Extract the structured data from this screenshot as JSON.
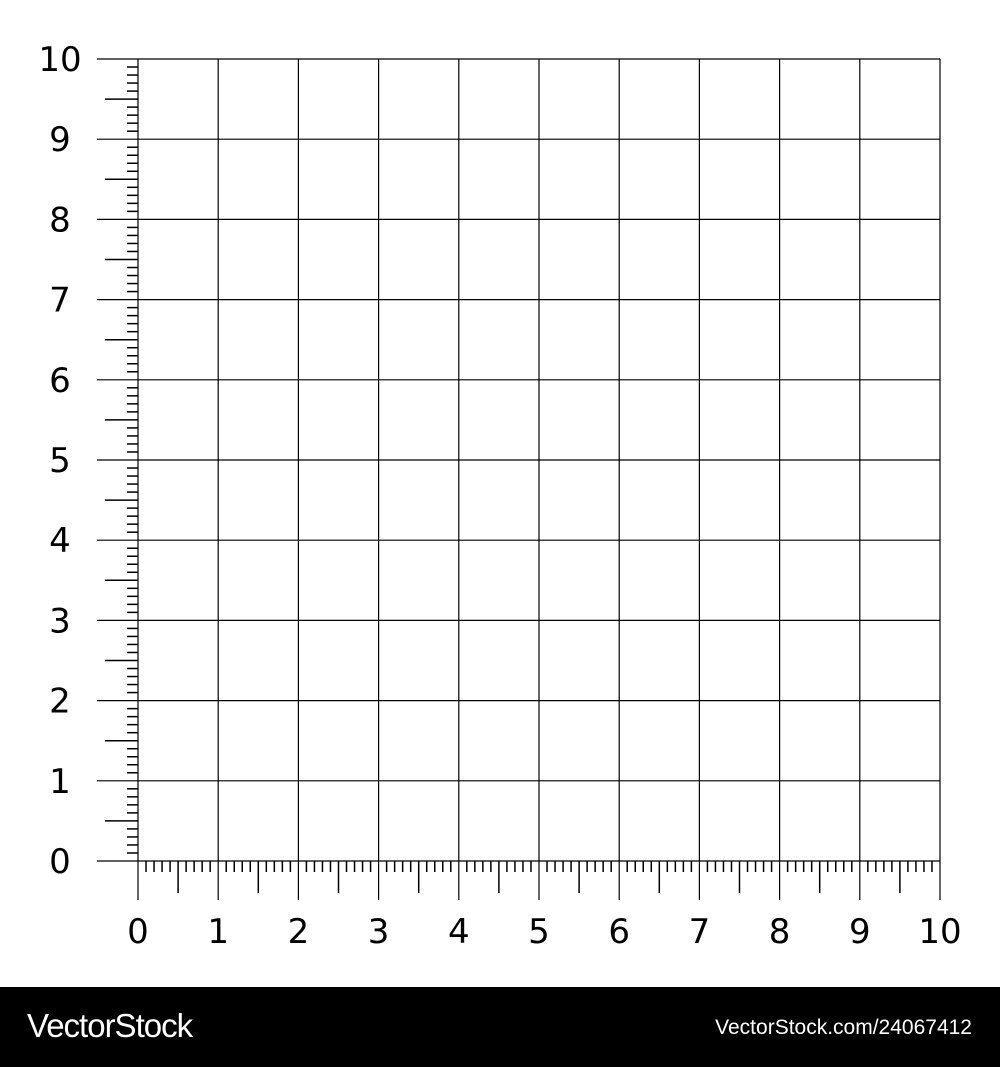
{
  "chart_data": {
    "type": "line",
    "title": "",
    "xlabel": "",
    "ylabel": "",
    "xlim": [
      0,
      10
    ],
    "ylim": [
      0,
      10
    ],
    "x_ticks": [
      "0",
      "1",
      "2",
      "3",
      "4",
      "5",
      "6",
      "7",
      "8",
      "9",
      "10"
    ],
    "y_ticks": [
      "0",
      "1",
      "2",
      "3",
      "4",
      "5",
      "6",
      "7",
      "8",
      "9",
      "10"
    ],
    "major_step": 1,
    "minor_step": 0.1,
    "grid": true,
    "series": [],
    "colors": {
      "grid": "#000000",
      "background": "#ffffff"
    }
  },
  "footer": {
    "brand": "VectorStock",
    "url": "VectorStock.com/24067412"
  }
}
